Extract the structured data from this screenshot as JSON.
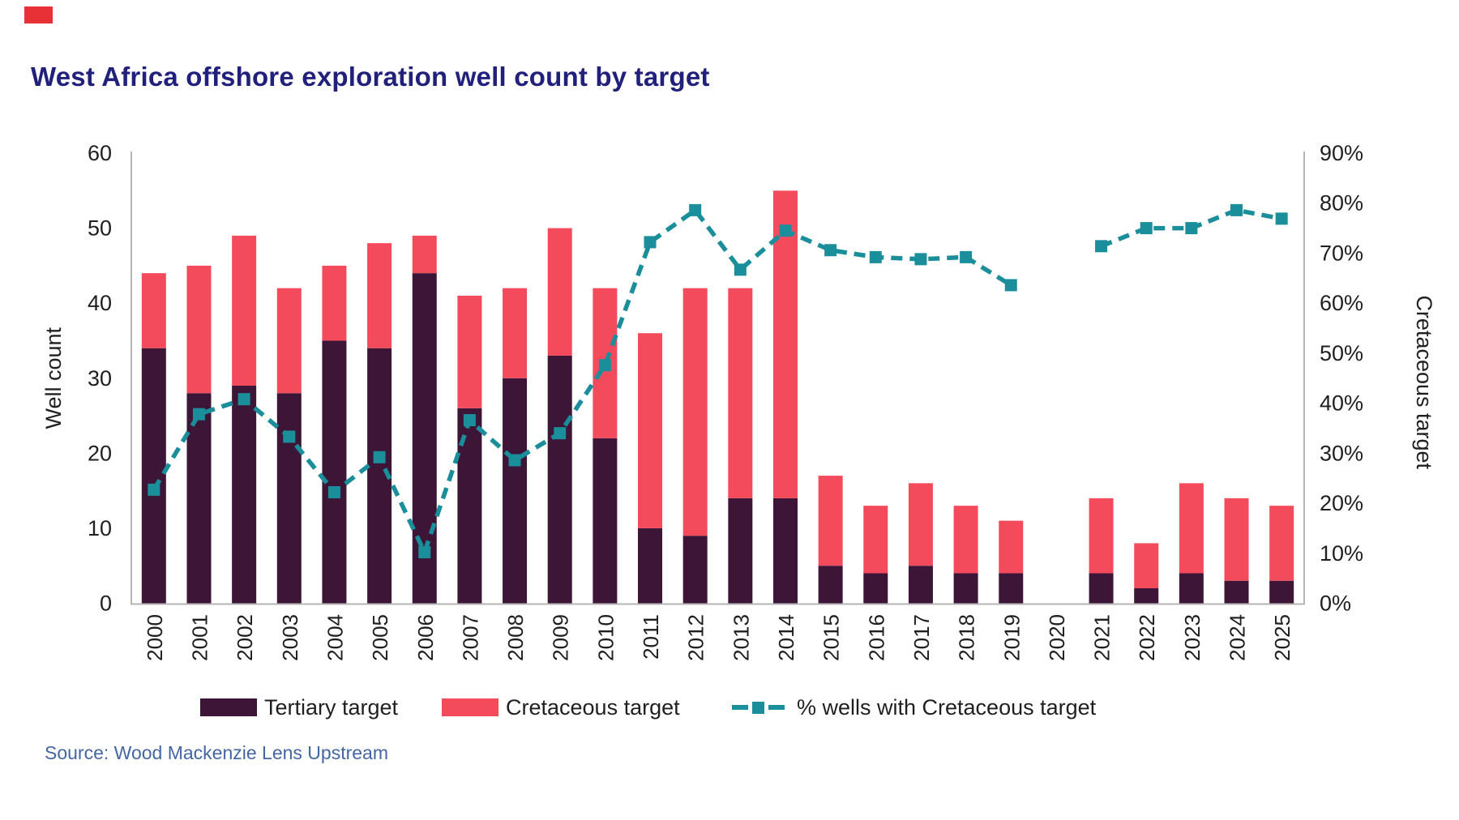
{
  "brand": {
    "mark_color": "#e73137"
  },
  "header": {
    "title": "West Africa offshore exploration well count by target",
    "title_color": "#21217d"
  },
  "footer": {
    "source": "Source: Wood Mackenzie Lens Upstream",
    "source_color": "#4466a3"
  },
  "legend": {
    "items": [
      {
        "label": "Tertiary target",
        "type": "swatch",
        "color": "#3c1537"
      },
      {
        "label": "Cretaceous target",
        "type": "swatch",
        "color": "#f34b5c"
      },
      {
        "label": "% wells with Cretaceous target",
        "type": "dashed-line",
        "color": "#1a8e9a"
      }
    ]
  },
  "chart_data": {
    "type": "bar",
    "subtype": "stacked-bars-with-percent-line",
    "title": "West Africa offshore exploration well count by target",
    "grid": false,
    "legend_position": "bottom",
    "categories": [
      "2000",
      "2001",
      "2002",
      "2003",
      "2004",
      "2005",
      "2006",
      "2007",
      "2008",
      "2009",
      "2010",
      "2011",
      "2012",
      "2013",
      "2014",
      "2015",
      "2016",
      "2017",
      "2018",
      "2019",
      "2020",
      "2021",
      "2022",
      "2023",
      "2024",
      "2025"
    ],
    "series": [
      {
        "name": "Tertiary target",
        "color": "#3c1537",
        "values": [
          34,
          28,
          29,
          28,
          35,
          34,
          44,
          26,
          30,
          33,
          22,
          10,
          9,
          14,
          14,
          5,
          4,
          5,
          4,
          4,
          0,
          4,
          2,
          4,
          3,
          3
        ]
      },
      {
        "name": "Cretaceous target",
        "color": "#f34b5c",
        "values": [
          10,
          17,
          20,
          14,
          10,
          14,
          5,
          15,
          12,
          17,
          20,
          26,
          33,
          28,
          41,
          12,
          9,
          11,
          9,
          7,
          0,
          10,
          6,
          12,
          11,
          10
        ]
      }
    ],
    "totals": [
      44,
      45,
      49,
      42,
      45,
      48,
      49,
      41,
      42,
      50,
      42,
      36,
      42,
      42,
      55,
      17,
      13,
      16,
      13,
      11,
      0,
      14,
      8,
      16,
      14,
      13
    ],
    "line_series": {
      "name": "% wells with Cretaceous target",
      "color": "#1a8e9a",
      "axis": "right",
      "style": "dashed-with-square-markers",
      "values": [
        22.7,
        37.8,
        40.8,
        33.3,
        22.2,
        29.2,
        10.2,
        36.6,
        28.6,
        34.0,
        47.6,
        72.2,
        78.6,
        66.7,
        74.5,
        70.6,
        69.2,
        68.8,
        69.2,
        63.6,
        null,
        71.4,
        75.0,
        75.0,
        78.6,
        76.9
      ]
    },
    "left_axis": {
      "label": "Well count",
      "min": 0,
      "max": 60,
      "step": 10,
      "tick_labels": [
        "0",
        "10",
        "20",
        "30",
        "40",
        "50",
        "60"
      ]
    },
    "right_axis": {
      "label": "Cretaceous target",
      "min": 0,
      "max": 90,
      "step": 10,
      "tick_labels": [
        "0%",
        "10%",
        "20%",
        "30%",
        "40%",
        "50%",
        "60%",
        "70%",
        "80%",
        "90%"
      ]
    }
  }
}
